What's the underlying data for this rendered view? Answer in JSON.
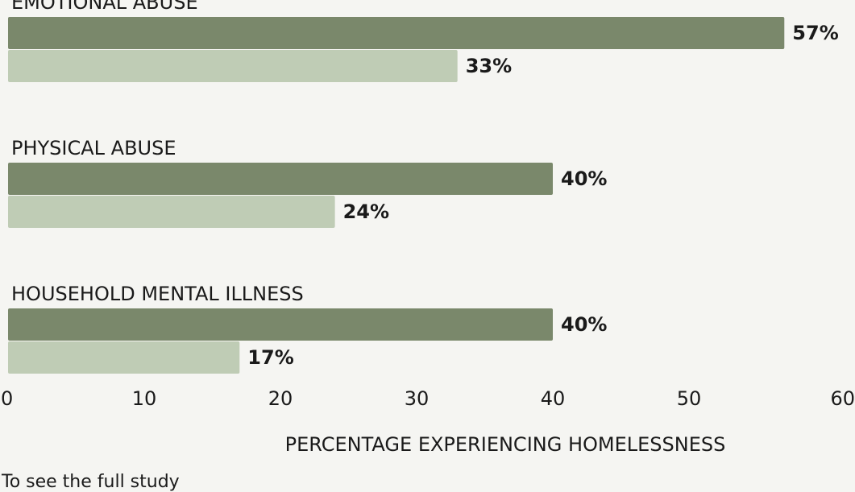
{
  "colors": {
    "series_dark": "#7a886b",
    "series_light": "#bfccb5",
    "background": "#f5f5f2",
    "text": "#1a1a1a"
  },
  "chart_data": {
    "type": "bar",
    "orientation": "horizontal",
    "categories": [
      "EMOTIONAL ABUSE",
      "PHYSICAL ABUSE",
      "HOUSEHOLD MENTAL ILLNESS"
    ],
    "series": [
      {
        "values": [
          57,
          40,
          40
        ],
        "labels": [
          "57%",
          "40%",
          "40%"
        ]
      },
      {
        "values": [
          33,
          24,
          17
        ],
        "labels": [
          "33%",
          "24%",
          "17%"
        ]
      }
    ],
    "xlabel": "PERCENTAGE EXPERIENCING HOMELESSNESS",
    "xlim": [
      0,
      60
    ],
    "xticks": [
      "0",
      "10",
      "20",
      "30",
      "40",
      "50",
      "60"
    ],
    "grid": false,
    "legend": "none"
  },
  "footer": {
    "text": "To see the full study"
  }
}
